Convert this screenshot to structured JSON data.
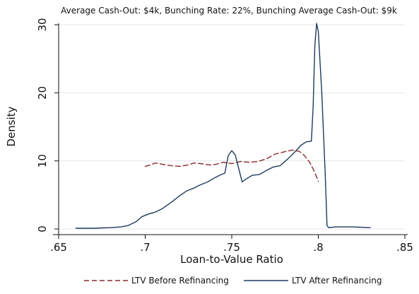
{
  "chart_data": {
    "type": "line",
    "title": "Average Cash-Out: $4k, Bunching Rate: 22%, Bunching Average Cash-Out: $9k",
    "xlabel": "Loan-to-Value Ratio",
    "ylabel": "Density",
    "xlim": [
      0.65,
      0.85
    ],
    "ylim": [
      0,
      30
    ],
    "x_ticks": [
      {
        "value": 0.65,
        "label": ".65"
      },
      {
        "value": 0.7,
        "label": ".7"
      },
      {
        "value": 0.75,
        "label": ".75"
      },
      {
        "value": 0.8,
        "label": ".8"
      },
      {
        "value": 0.85,
        "label": ".85"
      }
    ],
    "y_ticks": [
      {
        "value": 0,
        "label": "0"
      },
      {
        "value": 10,
        "label": "10"
      },
      {
        "value": 20,
        "label": "20"
      },
      {
        "value": 30,
        "label": "30"
      }
    ],
    "grid": "horizontal",
    "legend_position": "bottom",
    "series": [
      {
        "name": "LTV Before Refinancing",
        "color": "#8b2a2a",
        "style": "dashed",
        "points": [
          [
            0.7,
            9.2
          ],
          [
            0.703,
            9.4
          ],
          [
            0.706,
            9.7
          ],
          [
            0.71,
            9.5
          ],
          [
            0.715,
            9.3
          ],
          [
            0.72,
            9.2
          ],
          [
            0.725,
            9.4
          ],
          [
            0.728,
            9.7
          ],
          [
            0.732,
            9.6
          ],
          [
            0.737,
            9.4
          ],
          [
            0.741,
            9.5
          ],
          [
            0.745,
            9.8
          ],
          [
            0.75,
            9.6
          ],
          [
            0.755,
            9.9
          ],
          [
            0.76,
            9.8
          ],
          [
            0.765,
            9.9
          ],
          [
            0.77,
            10.3
          ],
          [
            0.775,
            11.0
          ],
          [
            0.78,
            11.3
          ],
          [
            0.785,
            11.6
          ],
          [
            0.789,
            11.4
          ],
          [
            0.792,
            10.8
          ],
          [
            0.795,
            9.8
          ],
          [
            0.798,
            8.3
          ],
          [
            0.8,
            7.0
          ]
        ]
      },
      {
        "name": "LTV After Refinancing",
        "color": "#1f3a5f",
        "style": "solid",
        "points": [
          [
            0.66,
            0.1
          ],
          [
            0.67,
            0.1
          ],
          [
            0.68,
            0.2
          ],
          [
            0.686,
            0.3
          ],
          [
            0.69,
            0.5
          ],
          [
            0.695,
            1.1
          ],
          [
            0.698,
            1.8
          ],
          [
            0.702,
            2.2
          ],
          [
            0.706,
            2.5
          ],
          [
            0.71,
            3.0
          ],
          [
            0.715,
            3.9
          ],
          [
            0.72,
            4.9
          ],
          [
            0.724,
            5.6
          ],
          [
            0.728,
            6.0
          ],
          [
            0.732,
            6.5
          ],
          [
            0.736,
            6.9
          ],
          [
            0.74,
            7.5
          ],
          [
            0.744,
            8.0
          ],
          [
            0.746,
            8.2
          ],
          [
            0.748,
            10.8
          ],
          [
            0.75,
            11.5
          ],
          [
            0.752,
            10.9
          ],
          [
            0.754,
            8.9
          ],
          [
            0.756,
            6.9
          ],
          [
            0.758,
            7.3
          ],
          [
            0.762,
            7.9
          ],
          [
            0.766,
            8.0
          ],
          [
            0.77,
            8.6
          ],
          [
            0.774,
            9.1
          ],
          [
            0.778,
            9.3
          ],
          [
            0.782,
            10.2
          ],
          [
            0.786,
            11.2
          ],
          [
            0.79,
            12.3
          ],
          [
            0.793,
            12.8
          ],
          [
            0.796,
            12.9
          ],
          [
            0.797,
            18.0
          ],
          [
            0.798,
            27.0
          ],
          [
            0.799,
            30.2
          ],
          [
            0.8,
            29.0
          ],
          [
            0.802,
            20.0
          ],
          [
            0.804,
            8.0
          ],
          [
            0.805,
            0.5
          ],
          [
            0.806,
            0.2
          ],
          [
            0.81,
            0.3
          ],
          [
            0.82,
            0.3
          ],
          [
            0.83,
            0.2
          ]
        ]
      }
    ]
  }
}
